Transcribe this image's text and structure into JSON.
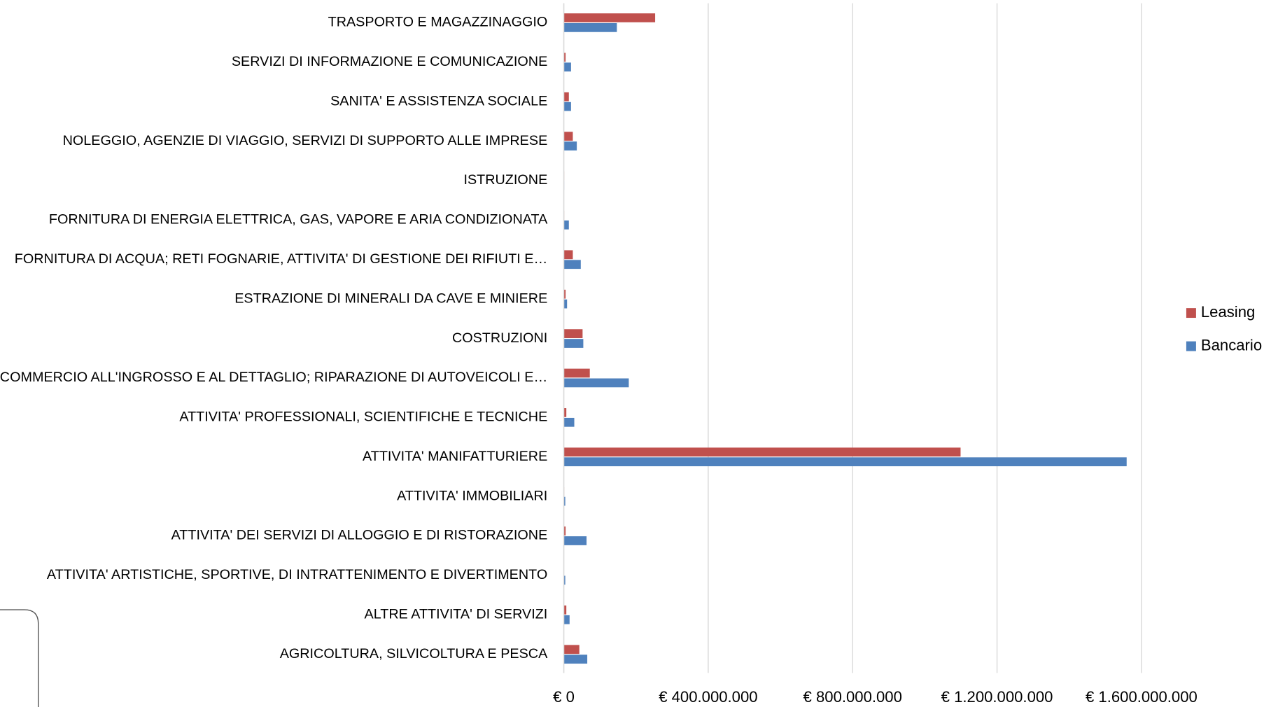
{
  "chart_data": {
    "type": "hbar",
    "categories": [
      "TRASPORTO E MAGAZZINAGGIO",
      "SERVIZI DI INFORMAZIONE E COMUNICAZIONE",
      "SANITA' E ASSISTENZA SOCIALE",
      "NOLEGGIO, AGENZIE DI VIAGGIO, SERVIZI DI SUPPORTO ALLE IMPRESE",
      "ISTRUZIONE",
      "FORNITURA DI ENERGIA ELETTRICA, GAS, VAPORE E ARIA CONDIZIONATA",
      "FORNITURA DI ACQUA; RETI FOGNARIE, ATTIVITA' DI GESTIONE DEI RIFIUTI E…",
      "ESTRAZIONE DI MINERALI DA CAVE E MINIERE",
      "COSTRUZIONI",
      "COMMERCIO ALL'INGROSSO E AL DETTAGLIO; RIPARAZIONE DI AUTOVEICOLI E…",
      "ATTIVITA' PROFESSIONALI, SCIENTIFICHE E TECNICHE",
      "ATTIVITA' MANIFATTURIERE",
      "ATTIVITA' IMMOBILIARI",
      "ATTIVITA' DEI SERVIZI DI ALLOGGIO E DI RISTORAZIONE",
      "ATTIVITA' ARTISTICHE, SPORTIVE, DI INTRATTENIMENTO E DIVERTIMENTO",
      "ALTRE ATTIVITA' DI SERVIZI",
      "AGRICOLTURA, SILVICOLTURA E PESCA"
    ],
    "series": [
      {
        "name": "Leasing",
        "color": "#c0504d",
        "values": [
          253000000,
          5000000,
          14000000,
          25000000,
          1000000,
          1000000,
          25000000,
          5000000,
          52000000,
          72000000,
          7000000,
          1099000000,
          1000000,
          5000000,
          500000,
          7000000,
          43000000
        ]
      },
      {
        "name": "Bancario",
        "color": "#4f81bd",
        "values": [
          147000000,
          20000000,
          20000000,
          36000000,
          1000000,
          14000000,
          47000000,
          9000000,
          54000000,
          180000000,
          29000000,
          1559000000,
          4000000,
          63000000,
          4000000,
          16000000,
          65000000
        ]
      }
    ],
    "xlim": [
      0,
      1600000000
    ],
    "xticks": [
      {
        "value": 0,
        "label": "€ 0"
      },
      {
        "value": 400000000,
        "label": "€ 400.000.000"
      },
      {
        "value": 800000000,
        "label": "€ 800.000.000"
      },
      {
        "value": 1200000000,
        "label": "€ 1.200.000.000"
      },
      {
        "value": 1600000000,
        "label": "€ 1.600.000.000"
      }
    ],
    "grid": true,
    "legend": "right"
  }
}
